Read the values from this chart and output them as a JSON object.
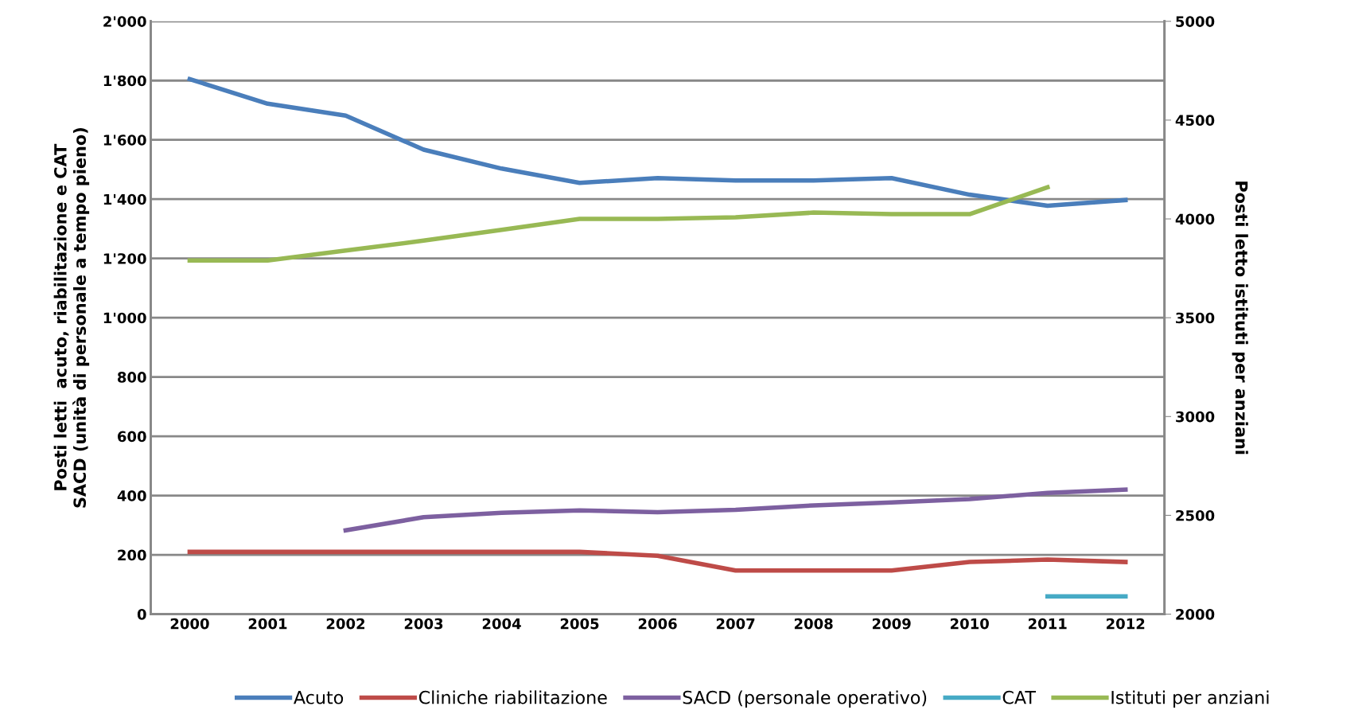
{
  "chart_data": {
    "type": "line",
    "categories": [
      "2000",
      "2001",
      "2002",
      "2003",
      "2004",
      "2005",
      "2006",
      "2007",
      "2008",
      "2009",
      "2010",
      "2011",
      "2012"
    ],
    "ylabel": "Posti letti  acuto, riabilitazione e CAT\nSACD (unità di personale a tempo pieno)",
    "y2label": "Posti letto istituti per anziani",
    "ylim": [
      0,
      2000
    ],
    "yticks": [
      0,
      200,
      400,
      600,
      800,
      {
        "value": 1000,
        "label": "1'000"
      },
      {
        "value": 1200,
        "label": "1'200"
      },
      {
        "value": 1400,
        "label": "1'400"
      },
      {
        "value": 1600,
        "label": "1'600"
      },
      {
        "value": 1800,
        "label": "1'800"
      },
      {
        "value": 2000,
        "label": "2'000"
      }
    ],
    "y2lim": [
      2000,
      5000
    ],
    "y2ticks": [
      2000,
      2500,
      3000,
      3500,
      4000,
      4500,
      5000
    ],
    "grid": "y",
    "legend": "bottom",
    "marker": "none",
    "line_style": "solid",
    "series": [
      {
        "name": "Acuto",
        "color": "#4a7ebb",
        "values": [
          1805,
          1722,
          1682,
          1567,
          1503,
          1455,
          1471,
          1463,
          1463,
          1471,
          1415,
          1378,
          1397
        ]
      },
      {
        "name": "Cliniche riabilitazione",
        "color": "#be4b48",
        "values": [
          210,
          210,
          210,
          210,
          210,
          210,
          197,
          147,
          147,
          147,
          176,
          184,
          176
        ]
      },
      {
        "name": "SACD (personale operativo)",
        "color": "#7d60a0",
        "values": [
          null,
          null,
          283,
          327,
          342,
          350,
          344,
          352,
          367,
          377,
          388,
          409,
          420
        ]
      },
      {
        "name": "CAT",
        "color": "#46aac5",
        "values": [
          null,
          null,
          null,
          null,
          null,
          null,
          null,
          null,
          null,
          null,
          null,
          60,
          60
        ]
      },
      {
        "name": "Istituti per anziani",
        "color": "#98b954",
        "axis": "y2",
        "values": [
          3790,
          3790,
          3840,
          3890,
          3945,
          4000,
          4000,
          4008,
          4032,
          4024,
          4024,
          4160,
          null
        ]
      }
    ]
  }
}
